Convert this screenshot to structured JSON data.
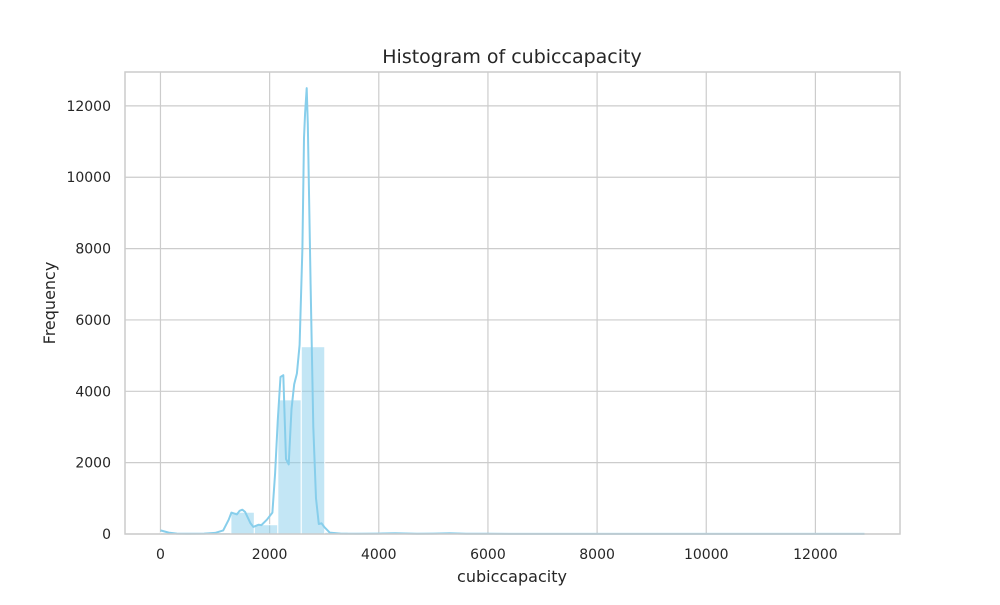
{
  "chart_data": {
    "type": "bar",
    "title": "Histogram of cubiccapacity",
    "xlabel": "cubiccapacity",
    "ylabel": "Frequency",
    "xlim": [
      -650,
      13550
    ],
    "ylim": [
      0,
      12950
    ],
    "x_ticks": [
      0,
      2000,
      4000,
      6000,
      8000,
      10000,
      12000
    ],
    "y_ticks": [
      0,
      2000,
      4000,
      6000,
      8000,
      10000,
      12000
    ],
    "x_tick_labels": [
      "0",
      "2000",
      "4000",
      "6000",
      "8000",
      "10000",
      "12000"
    ],
    "y_tick_labels": [
      "0",
      "2000",
      "4000",
      "6000",
      "8000",
      "10000",
      "12000"
    ],
    "grid": true,
    "colors": {
      "bar": "#87ceeb",
      "kde": "#87ceeb",
      "grid": "#cccccc",
      "frame": "#cccccc"
    },
    "bins": [
      {
        "start": 0,
        "end": 430,
        "value": 35
      },
      {
        "start": 430,
        "end": 860,
        "value": 5
      },
      {
        "start": 860,
        "end": 1290,
        "value": 40
      },
      {
        "start": 1290,
        "end": 1720,
        "value": 610
      },
      {
        "start": 1720,
        "end": 2150,
        "value": 260
      },
      {
        "start": 2150,
        "end": 2580,
        "value": 3760
      },
      {
        "start": 2580,
        "end": 3010,
        "value": 5250
      },
      {
        "start": 3010,
        "end": 3440,
        "value": 50
      },
      {
        "start": 3440,
        "end": 3870,
        "value": 10
      },
      {
        "start": 3870,
        "end": 4300,
        "value": 20
      },
      {
        "start": 4300,
        "end": 4730,
        "value": 8
      },
      {
        "start": 4730,
        "end": 5160,
        "value": 5
      },
      {
        "start": 5160,
        "end": 5590,
        "value": 15
      },
      {
        "start": 5590,
        "end": 6020,
        "value": 5
      },
      {
        "start": 6020,
        "end": 6450,
        "value": 3
      },
      {
        "start": 6450,
        "end": 6880,
        "value": 2
      },
      {
        "start": 6880,
        "end": 7310,
        "value": 2
      },
      {
        "start": 7310,
        "end": 7740,
        "value": 2
      },
      {
        "start": 7740,
        "end": 8170,
        "value": 2
      },
      {
        "start": 8170,
        "end": 8600,
        "value": 2
      },
      {
        "start": 8600,
        "end": 9030,
        "value": 2
      },
      {
        "start": 9030,
        "end": 9460,
        "value": 2
      },
      {
        "start": 9460,
        "end": 9890,
        "value": 2
      },
      {
        "start": 9890,
        "end": 10320,
        "value": 2
      },
      {
        "start": 10320,
        "end": 10750,
        "value": 2
      },
      {
        "start": 10750,
        "end": 11180,
        "value": 2
      },
      {
        "start": 11180,
        "end": 11610,
        "value": 2
      },
      {
        "start": 11610,
        "end": 12040,
        "value": 2
      },
      {
        "start": 12040,
        "end": 12470,
        "value": 2
      },
      {
        "start": 12470,
        "end": 12900,
        "value": 3
      }
    ],
    "kde": [
      [
        0,
        100
      ],
      [
        150,
        40
      ],
      [
        300,
        10
      ],
      [
        500,
        5
      ],
      [
        800,
        10
      ],
      [
        1000,
        30
      ],
      [
        1150,
        100
      ],
      [
        1250,
        400
      ],
      [
        1300,
        600
      ],
      [
        1400,
        550
      ],
      [
        1450,
        650
      ],
      [
        1500,
        680
      ],
      [
        1550,
        620
      ],
      [
        1650,
        300
      ],
      [
        1700,
        200
      ],
      [
        1800,
        260
      ],
      [
        1850,
        250
      ],
      [
        1950,
        400
      ],
      [
        2050,
        600
      ],
      [
        2100,
        1700
      ],
      [
        2150,
        3200
      ],
      [
        2200,
        4400
      ],
      [
        2250,
        4450
      ],
      [
        2300,
        2100
      ],
      [
        2350,
        1950
      ],
      [
        2400,
        3500
      ],
      [
        2450,
        4200
      ],
      [
        2500,
        4500
      ],
      [
        2550,
        5300
      ],
      [
        2600,
        8000
      ],
      [
        2630,
        11100
      ],
      [
        2650,
        11800
      ],
      [
        2680,
        12500
      ],
      [
        2700,
        11500
      ],
      [
        2750,
        7000
      ],
      [
        2800,
        3000
      ],
      [
        2850,
        1000
      ],
      [
        2900,
        280
      ],
      [
        2950,
        300
      ],
      [
        3000,
        200
      ],
      [
        3100,
        40
      ],
      [
        3300,
        10
      ],
      [
        3600,
        5
      ],
      [
        4000,
        10
      ],
      [
        4300,
        20
      ],
      [
        4700,
        5
      ],
      [
        5000,
        10
      ],
      [
        5300,
        20
      ],
      [
        5600,
        8
      ],
      [
        6000,
        5
      ],
      [
        7000,
        3
      ],
      [
        8000,
        2
      ],
      [
        9000,
        2
      ],
      [
        10000,
        2
      ],
      [
        11000,
        2
      ],
      [
        12000,
        2
      ],
      [
        12900,
        3
      ]
    ]
  }
}
